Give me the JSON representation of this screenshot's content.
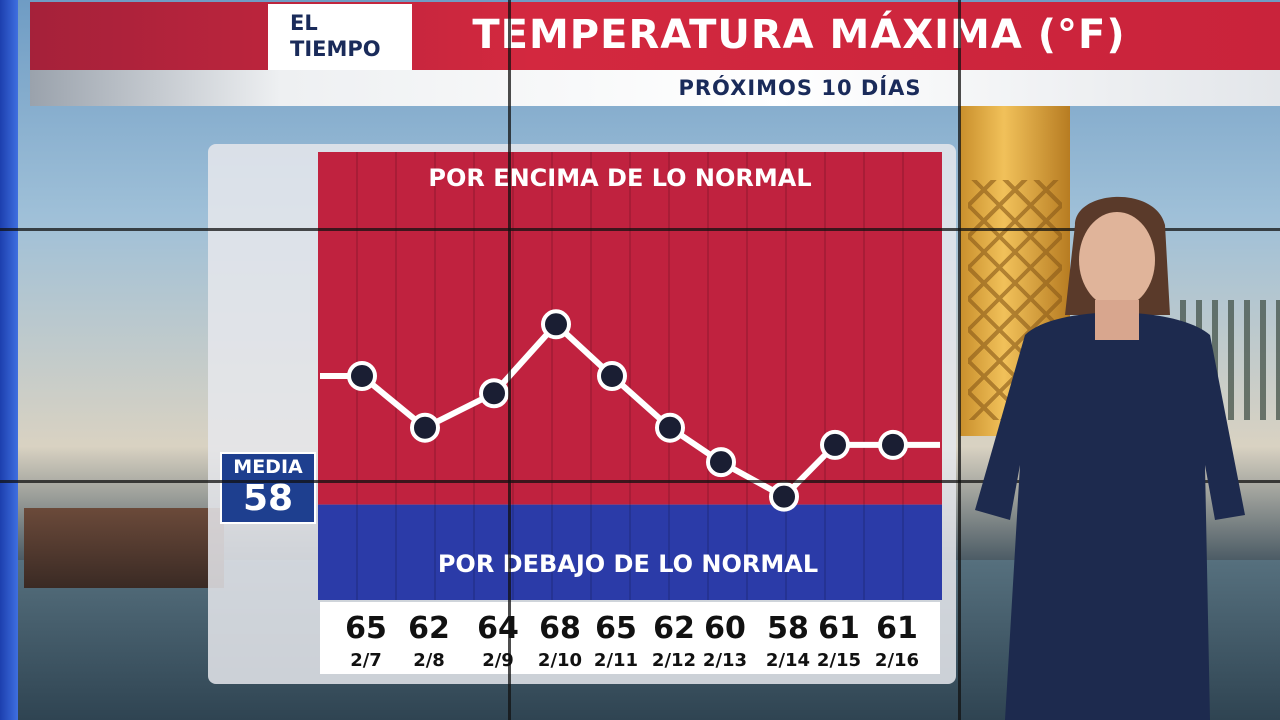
{
  "header": {
    "logo_line1": "EL",
    "logo_line2": "TIEMPO",
    "title": "TEMPERATURA MÁXIMA (°F)",
    "subtitle": "PRÓXIMOS 10 DÍAS"
  },
  "media": {
    "label": "MEDIA",
    "value": "58"
  },
  "colors": {
    "above": "#c0223f",
    "below": "#2b3ba8",
    "header": "#d3283f",
    "media_box": "#1e3f8f"
  },
  "chart_data": {
    "type": "line",
    "title": "TEMPERATURA MÁXIMA (°F)",
    "subtitle": "PRÓXIMOS 10 DÍAS",
    "categories": [
      "2/7",
      "2/8",
      "2/9",
      "2/10",
      "2/11",
      "2/12",
      "2/13",
      "2/14",
      "2/15",
      "2/16"
    ],
    "values": [
      65,
      62,
      64,
      68,
      65,
      62,
      60,
      58,
      61,
      61
    ],
    "baseline": 58,
    "above_label": "POR ENCIMA DE LO NORMAL",
    "below_label": "POR DEBAJO DE LO NORMAL",
    "ylim": [
      52,
      78
    ]
  }
}
